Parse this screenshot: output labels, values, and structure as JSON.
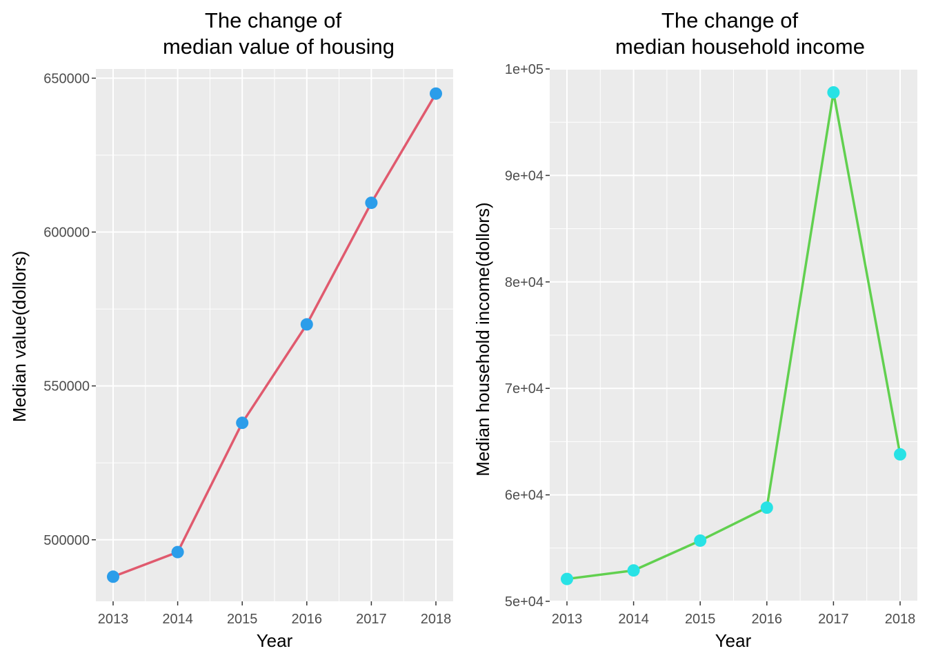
{
  "chart_data": [
    {
      "type": "line",
      "title_lines": [
        "The change of",
        "median value of housing"
      ],
      "xlabel": "Year",
      "ylabel": "Median value(dollors)",
      "x": [
        2013,
        2014,
        2015,
        2016,
        2017,
        2018
      ],
      "values": [
        488000,
        496000,
        538000,
        570000,
        609500,
        645000
      ],
      "ylim": [
        480000,
        653000
      ],
      "y_ticks": [
        500000,
        550000,
        600000,
        650000
      ],
      "y_tick_labels": [
        "500000",
        "550000",
        "600000",
        "650000"
      ],
      "x_tick_labels": [
        "2013",
        "2014",
        "2015",
        "2016",
        "2017",
        "2018"
      ],
      "line_color": "#E05A6E",
      "point_color": "#2B9DEA",
      "panel_color": "#EBEBEB",
      "grid": true,
      "legend": "none"
    },
    {
      "type": "line",
      "title_lines": [
        "The change of",
        "median household income"
      ],
      "xlabel": "Year",
      "ylabel": "Median household income(dollors)",
      "x": [
        2013,
        2014,
        2015,
        2016,
        2017,
        2018
      ],
      "values": [
        52100,
        52900,
        55700,
        58800,
        97800,
        63800
      ],
      "ylim": [
        50000,
        100000
      ],
      "y_ticks": [
        50000,
        60000,
        70000,
        80000,
        90000,
        100000
      ],
      "y_tick_labels": [
        "5e+04",
        "6e+04",
        "7e+04",
        "8e+04",
        "9e+04",
        "1e+05"
      ],
      "x_tick_labels": [
        "2013",
        "2014",
        "2015",
        "2016",
        "2017",
        "2018"
      ],
      "line_color": "#61D04F",
      "point_color": "#28E2E5",
      "panel_color": "#EBEBEB",
      "grid": true,
      "legend": "none"
    }
  ]
}
